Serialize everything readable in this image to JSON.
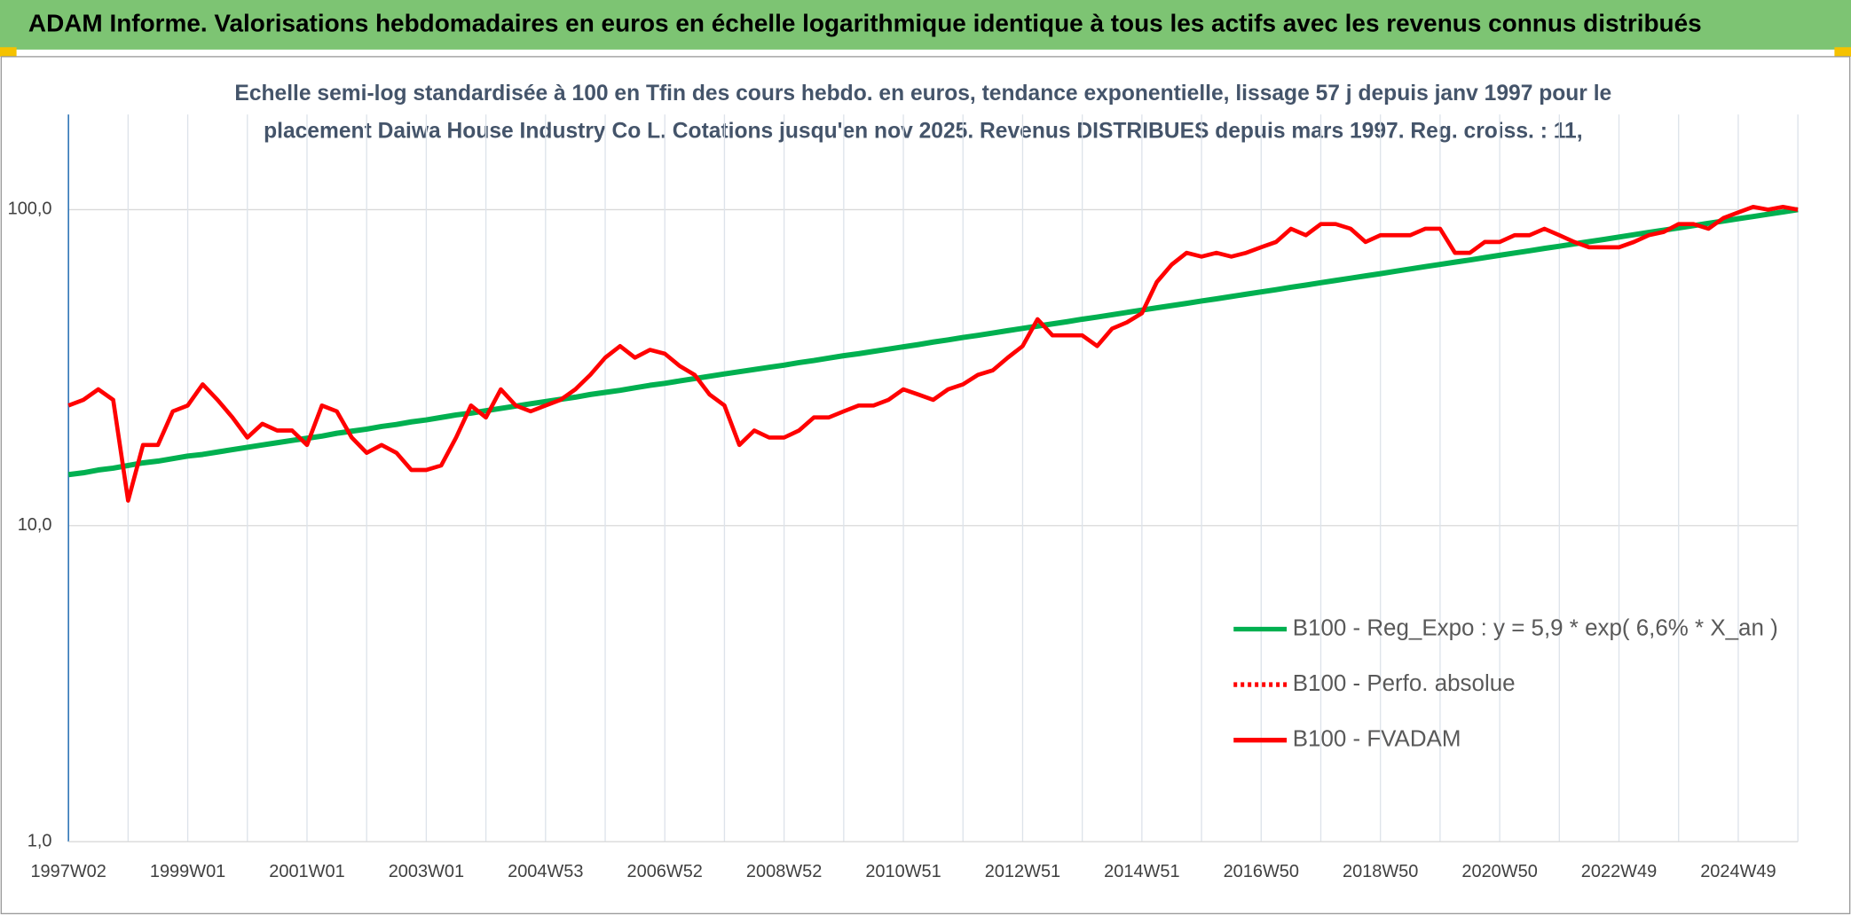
{
  "header": {
    "title": "ADAM Informe. Valorisations hebdomadaires en euros en échelle logarithmique identique à tous les actifs avec les revenus connus distribués"
  },
  "chart_data": {
    "type": "line",
    "title": [
      "Echelle semi-log standardisée à 100 en Tfin des cours hebdo. en euros, tendance exponentielle, lissage 57 j depuis janv 1997 pour le",
      "placement Daiwa House Industry Co L. Cotations jusqu'en nov 2025. Revenus DISTRIBUES depuis mars 1997. Reg. croiss. : 11,"
    ],
    "categories": [
      "1997W02",
      null,
      null,
      null,
      null,
      null,
      null,
      null,
      "1999W01",
      null,
      null,
      null,
      null,
      null,
      null,
      null,
      "2001W01",
      null,
      null,
      null,
      null,
      null,
      null,
      null,
      "2003W01",
      null,
      null,
      null,
      null,
      null,
      null,
      null,
      "2004W53",
      null,
      null,
      null,
      null,
      null,
      null,
      null,
      "2006W52",
      null,
      null,
      null,
      null,
      null,
      null,
      null,
      "2008W52",
      null,
      null,
      null,
      null,
      null,
      null,
      null,
      "2010W51",
      null,
      null,
      null,
      null,
      null,
      null,
      null,
      "2012W51",
      null,
      null,
      null,
      null,
      null,
      null,
      null,
      "2014W51",
      null,
      null,
      null,
      null,
      null,
      null,
      null,
      "2016W50",
      null,
      null,
      null,
      null,
      null,
      null,
      null,
      "2018W50",
      null,
      null,
      null,
      null,
      null,
      null,
      null,
      "2020W50",
      null,
      null,
      null,
      null,
      null,
      null,
      null,
      "2022W49",
      null,
      null,
      null,
      null,
      null,
      null,
      null,
      "2024W49",
      null,
      null,
      null,
      null
    ],
    "log_scale": true,
    "ylim": [
      1,
      200
    ],
    "yticks": [
      {
        "value": 1,
        "label": "1,0"
      },
      {
        "value": 10,
        "label": "10,0"
      },
      {
        "value": 100,
        "label": "100,0"
      }
    ],
    "grid": true,
    "legend_position": "lower right",
    "series": [
      {
        "name": "B100 - Reg_Expo : y = 5,9 * exp( 6,6% *  X_an )",
        "color": "#00b050",
        "style": "solid",
        "values": [
          14.5,
          14.7,
          15.0,
          15.2,
          15.5,
          15.8,
          16.0,
          16.3,
          16.6,
          16.8,
          17.1,
          17.4,
          17.7,
          18.0,
          18.3,
          18.6,
          18.9,
          19.2,
          19.6,
          19.9,
          20.2,
          20.6,
          20.9,
          21.3,
          21.6,
          22.0,
          22.4,
          22.7,
          23.1,
          23.5,
          23.9,
          24.3,
          24.7,
          25.1,
          25.5,
          26.0,
          26.4,
          26.8,
          27.3,
          27.8,
          28.2,
          28.7,
          29.2,
          29.7,
          30.2,
          30.7,
          31.2,
          31.7,
          32.2,
          32.8,
          33.3,
          33.9,
          34.5,
          35.0,
          35.6,
          36.2,
          36.8,
          37.4,
          38.1,
          38.7,
          39.4,
          40.0,
          40.7,
          41.4,
          42.1,
          42.8,
          43.5,
          44.2,
          45.0,
          45.7,
          46.5,
          47.3,
          48.1,
          48.9,
          49.7,
          50.5,
          51.4,
          52.2,
          53.1,
          54.0,
          54.9,
          55.8,
          56.8,
          57.7,
          58.7,
          59.7,
          60.7,
          61.7,
          62.7,
          63.8,
          64.9,
          66.0,
          67.1,
          68.2,
          69.3,
          70.5,
          71.7,
          72.9,
          74.1,
          75.4,
          76.6,
          77.9,
          79.2,
          80.5,
          81.9,
          83.3,
          84.7,
          86.1,
          87.5,
          89.0,
          90.5,
          92.0,
          93.6,
          95.1,
          96.7,
          98.3,
          100.0
        ]
      },
      {
        "name": "B100 - Perfo. absolue",
        "color": "#ff0000",
        "style": "dotted"
      },
      {
        "name": "B100 - FVADAM",
        "color": "#ff0000",
        "style": "solid",
        "values": [
          24,
          25,
          27,
          25,
          12,
          18,
          18,
          23,
          24,
          28,
          25,
          22,
          19,
          21,
          20,
          20,
          18,
          24,
          23,
          19,
          17,
          18,
          17,
          15,
          15,
          15.5,
          19,
          24,
          22,
          27,
          24,
          23,
          24,
          25,
          27,
          30,
          34,
          37,
          34,
          36,
          35,
          32,
          30,
          26,
          24,
          18,
          20,
          19,
          19,
          20,
          22,
          22,
          23,
          24,
          24,
          25,
          27,
          26,
          25,
          27,
          28,
          30,
          31,
          34,
          37,
          45,
          40,
          40,
          40,
          37,
          42,
          44,
          47,
          59,
          67,
          73,
          71,
          73,
          71,
          73,
          76,
          79,
          87,
          83,
          90,
          90,
          87,
          79,
          83,
          83,
          83,
          87,
          87,
          73,
          73,
          79,
          79,
          83,
          83,
          87,
          83,
          79,
          76,
          76,
          76,
          79,
          83,
          85,
          90,
          90,
          87,
          94,
          98,
          102,
          100,
          102,
          100
        ]
      }
    ]
  }
}
